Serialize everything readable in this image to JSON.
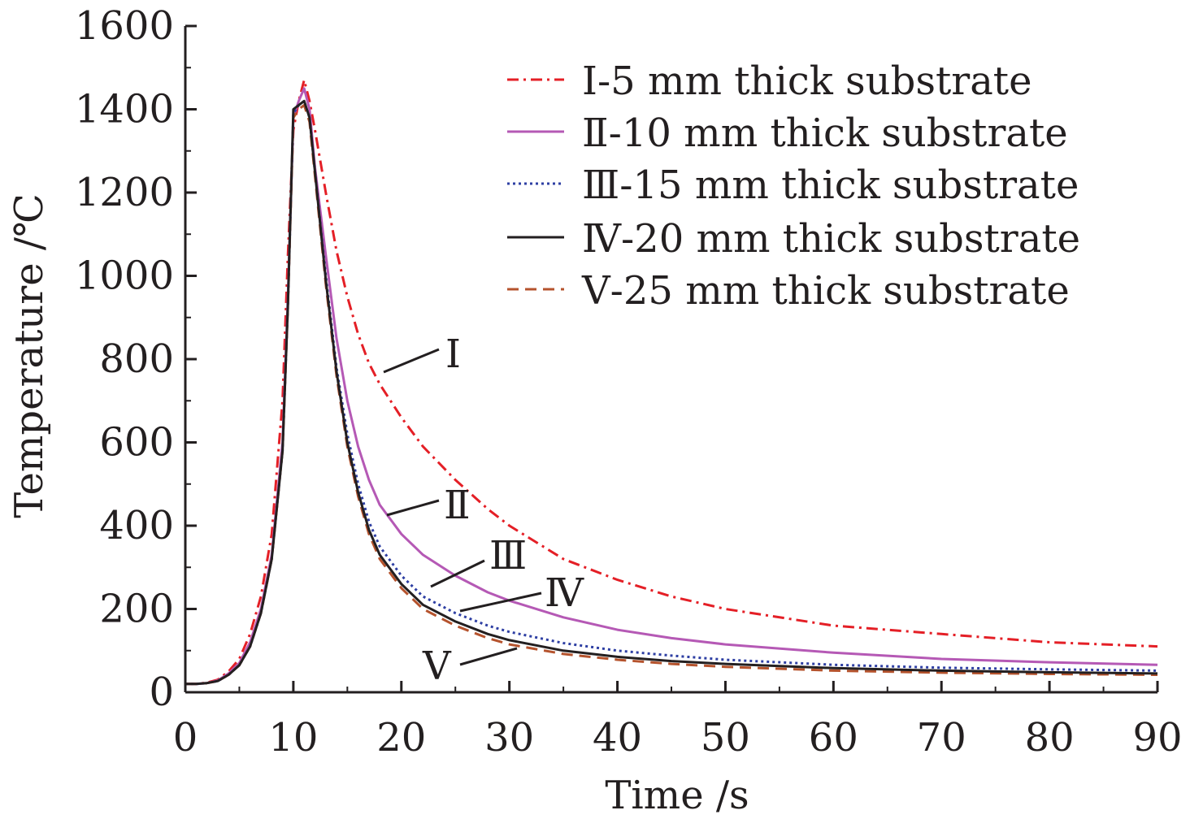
{
  "chart_data": {
    "type": "line",
    "xlabel": "Time /s",
    "ylabel": "Temperature /℃",
    "xlim": [
      0,
      90
    ],
    "ylim": [
      0,
      1600
    ],
    "xticks": [
      "0",
      "10",
      "20",
      "30",
      "40",
      "50",
      "60",
      "70",
      "80",
      "90"
    ],
    "yticks": [
      "0",
      "200",
      "400",
      "600",
      "800",
      "1000",
      "1200",
      "1400",
      "1600"
    ],
    "grid": false,
    "legend_position": "top-right",
    "series": [
      {
        "name": "Ⅰ-5 mm thick substrate",
        "tag": "Ⅰ",
        "color": "#e41f26",
        "style": "dashdot",
        "x": [
          0,
          1,
          2,
          3,
          4,
          5,
          6,
          7,
          8,
          9,
          9.5,
          10,
          10.5,
          11,
          11.5,
          12,
          13,
          14,
          15,
          16,
          17,
          18,
          20,
          22,
          25,
          28,
          30,
          35,
          40,
          45,
          50,
          60,
          70,
          80,
          90
        ],
        "y": [
          20,
          20,
          23,
          30,
          50,
          80,
          140,
          230,
          380,
          700,
          1050,
          1350,
          1420,
          1470,
          1420,
          1350,
          1200,
          1060,
          950,
          860,
          790,
          740,
          660,
          590,
          510,
          440,
          400,
          320,
          270,
          230,
          200,
          160,
          140,
          120,
          110
        ]
      },
      {
        "name": "Ⅱ-10 mm thick substrate",
        "tag": "Ⅱ",
        "color": "#b559b5",
        "style": "solid",
        "x": [
          0,
          1,
          2,
          3,
          4,
          5,
          6,
          7,
          8,
          9,
          9.5,
          10,
          10.5,
          11,
          11.5,
          12,
          13,
          14,
          15,
          16,
          17,
          18,
          20,
          22,
          25,
          28,
          30,
          35,
          40,
          45,
          50,
          60,
          70,
          80,
          90
        ],
        "y": [
          20,
          20,
          22,
          28,
          45,
          70,
          120,
          200,
          330,
          600,
          950,
          1380,
          1420,
          1450,
          1400,
          1260,
          1050,
          850,
          700,
          590,
          510,
          450,
          380,
          330,
          280,
          240,
          220,
          180,
          150,
          130,
          115,
          95,
          80,
          72,
          66
        ]
      },
      {
        "name": "Ⅲ-15 mm thick substrate",
        "tag": "Ⅲ",
        "color": "#2e3fa3",
        "style": "dotted",
        "x": [
          0,
          1,
          2,
          3,
          4,
          5,
          6,
          7,
          8,
          9,
          9.5,
          10,
          10.5,
          11,
          11.5,
          12,
          13,
          14,
          15,
          16,
          17,
          18,
          20,
          22,
          25,
          28,
          30,
          35,
          40,
          45,
          50,
          60,
          70,
          80,
          90
        ],
        "y": [
          20,
          20,
          22,
          27,
          42,
          65,
          110,
          190,
          320,
          580,
          930,
          1390,
          1410,
          1420,
          1380,
          1250,
          1000,
          780,
          620,
          500,
          410,
          350,
          280,
          230,
          190,
          160,
          145,
          118,
          100,
          88,
          78,
          66,
          59,
          55,
          52
        ]
      },
      {
        "name": "Ⅳ-20 mm thick substrate",
        "tag": "Ⅳ",
        "color": "#231f20",
        "style": "solid",
        "x": [
          0,
          1,
          2,
          3,
          4,
          5,
          6,
          7,
          8,
          9,
          9.5,
          10,
          10.5,
          11,
          11.5,
          12,
          13,
          14,
          15,
          16,
          17,
          18,
          20,
          22,
          25,
          28,
          30,
          35,
          40,
          45,
          50,
          60,
          70,
          80,
          90
        ],
        "y": [
          20,
          20,
          22,
          27,
          42,
          65,
          110,
          190,
          320,
          580,
          930,
          1400,
          1410,
          1420,
          1380,
          1250,
          990,
          770,
          600,
          480,
          390,
          330,
          260,
          210,
          170,
          140,
          125,
          100,
          85,
          75,
          68,
          58,
          52,
          48,
          45
        ]
      },
      {
        "name": "Ⅴ-25 mm thick substrate",
        "tag": "Ⅴ",
        "color": "#b5532d",
        "style": "dashed",
        "x": [
          0,
          1,
          2,
          3,
          4,
          5,
          6,
          7,
          8,
          9,
          9.5,
          10,
          10.5,
          11,
          11.5,
          12,
          13,
          14,
          15,
          16,
          17,
          18,
          20,
          22,
          25,
          28,
          30,
          35,
          40,
          45,
          50,
          60,
          70,
          80,
          90
        ],
        "y": [
          20,
          20,
          22,
          27,
          42,
          65,
          110,
          190,
          320,
          580,
          930,
          1380,
          1400,
          1410,
          1370,
          1240,
          980,
          760,
          590,
          470,
          380,
          320,
          250,
          200,
          160,
          130,
          115,
          92,
          78,
          68,
          61,
          52,
          47,
          44,
          42
        ]
      }
    ]
  }
}
